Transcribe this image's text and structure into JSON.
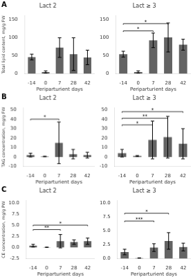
{
  "chart_data": [
    {
      "type": "bar",
      "title": "Lact 2",
      "categories": [
        "-14",
        "0",
        "7",
        "28",
        "42"
      ],
      "values": [
        46,
        5,
        72,
        54,
        45
      ],
      "errors": [
        8,
        3,
        27,
        45,
        20
      ],
      "color": "#636363",
      "ylim": [
        0,
        160
      ],
      "yticks": [
        0,
        50,
        100,
        150
      ],
      "ylabel": "Total lipid content, mg/g FW",
      "xlabel": "Periparturient days",
      "grid": false,
      "annotations": [
        {
          "text": "A"
        }
      ]
    },
    {
      "type": "bar",
      "title": "Lact ≥ 3",
      "categories": [
        "-14",
        "0",
        "7",
        "28",
        "42"
      ],
      "values": [
        54,
        5,
        92,
        100,
        80
      ],
      "errors": [
        8,
        3,
        20,
        40,
        15
      ],
      "color": "#636363",
      "ylim": [
        0,
        160
      ],
      "yticks": [
        0,
        50,
        100,
        150
      ],
      "xlabel": "Periparturient days",
      "grid": false,
      "annotations": [
        {
          "text": "*",
          "from": "-14",
          "to": "7",
          "y": 118
        },
        {
          "text": "*",
          "from": "-14",
          "to": "28",
          "y": 138
        }
      ]
    },
    {
      "type": "bar",
      "title": "Lact 2",
      "categories": [
        "-14",
        "0",
        "7",
        "28",
        "42"
      ],
      "values": [
        2,
        0.5,
        15,
        3,
        2
      ],
      "errors": [
        2,
        0.3,
        22,
        5,
        3
      ],
      "color": "#636363",
      "ylim": [
        -10,
        52
      ],
      "yticks": [
        -10,
        0,
        10,
        20,
        30,
        40,
        50
      ],
      "ylabel": "TAG concentration, mg/g FW",
      "xlabel": "Periparturient days",
      "grid": false,
      "annotations": [
        {
          "text": "B"
        },
        {
          "text": "*",
          "from": "-14",
          "to": "7",
          "y": 40
        }
      ]
    },
    {
      "type": "bar",
      "title": "Lact ≥ 3",
      "categories": [
        "-14",
        "0",
        "7",
        "28",
        "42"
      ],
      "values": [
        4,
        1,
        18,
        21,
        14
      ],
      "errors": [
        4,
        0.5,
        20,
        22,
        16
      ],
      "color": "#636363",
      "ylim": [
        -10,
        52
      ],
      "yticks": [
        -10,
        0,
        10,
        20,
        30,
        40,
        50
      ],
      "xlabel": "Periparturient days",
      "grid": false,
      "annotations": [
        {
          "text": "*",
          "from": "-14",
          "to": "7",
          "y": 34
        },
        {
          "text": "**",
          "from": "-14",
          "to": "28",
          "y": 41
        },
        {
          "text": "*",
          "from": "-14",
          "to": "42",
          "y": 48
        }
      ]
    },
    {
      "type": "bar",
      "title": "Lact 2",
      "categories": [
        "-14",
        "0",
        "7",
        "28",
        "42"
      ],
      "values": [
        0.4,
        0.05,
        1.4,
        1.2,
        1.4
      ],
      "errors": [
        0.3,
        0.03,
        1.5,
        0.5,
        0.7
      ],
      "color": "#636363",
      "ylim": [
        -2.5,
        10.5
      ],
      "yticks": [
        -2.5,
        {
          "value": 0,
          "label": "0.0"
        },
        2.5,
        {
          "value": 5,
          "label": "5.0"
        },
        7.5,
        {
          "value": 10,
          "label": "10.0"
        }
      ],
      "ylabel": "CE concentration, mg/g PW",
      "xlabel": "Periparturient days",
      "grid": false,
      "annotations": [
        {
          "text": "C"
        },
        {
          "text": "**",
          "from": "-14",
          "to": "7",
          "y": 4.0
        },
        {
          "text": "*",
          "from": "-14",
          "to": "42",
          "y": 5.0
        }
      ]
    },
    {
      "type": "bar",
      "title": "Lact ≥ 3",
      "categories": [
        "-14",
        "0",
        "7",
        "28",
        "42"
      ],
      "values": [
        1.2,
        0.1,
        2.0,
        3.2,
        2.1
      ],
      "errors": [
        0.5,
        0.05,
        0.7,
        1.5,
        0.7
      ],
      "color": "#636363",
      "ylim": [
        0,
        10.5
      ],
      "yticks": [
        {
          "value": 0,
          "label": "0.0"
        },
        2.5,
        {
          "value": 5,
          "label": "5.0"
        },
        7.5,
        {
          "value": 10,
          "label": "10.0"
        }
      ],
      "xlabel": "Periparturient days",
      "grid": false,
      "annotations": [
        {
          "text": "***",
          "from": "-14",
          "to": "7",
          "y": 6.8
        },
        {
          "text": "*",
          "from": "-14",
          "to": "28",
          "y": 8.2
        }
      ]
    }
  ]
}
